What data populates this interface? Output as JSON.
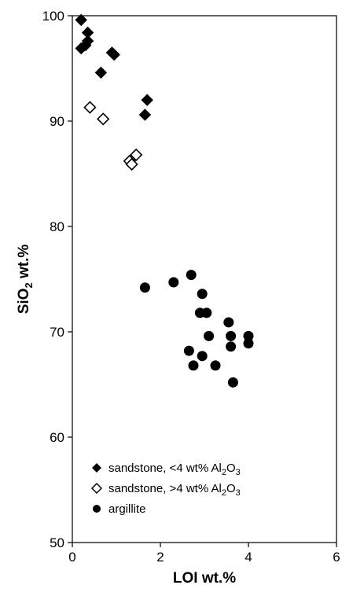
{
  "chart_data": {
    "type": "scatter",
    "xlabel": "LOI wt.%",
    "ylabel": {
      "main": "SiO",
      "sub": "2",
      "rest": " wt.%"
    },
    "xlim": [
      0,
      6
    ],
    "ylim": [
      50,
      100
    ],
    "x_ticks": [
      0,
      2,
      4,
      6
    ],
    "y_ticks": [
      50,
      60,
      70,
      80,
      90,
      100
    ],
    "grid": false,
    "legend_position": "bottom-left",
    "series": [
      {
        "name": {
          "main": "sandstone, <4 wt% Al",
          "sub1": "2",
          "mid": "O",
          "sub2": "3"
        },
        "marker": "diamond-filled",
        "points": [
          [
            0.2,
            99.6
          ],
          [
            0.35,
            98.4
          ],
          [
            0.35,
            97.6
          ],
          [
            0.3,
            97.2
          ],
          [
            0.2,
            96.9
          ],
          [
            0.9,
            96.5
          ],
          [
            0.95,
            96.3
          ],
          [
            0.65,
            94.6
          ],
          [
            1.7,
            92.0
          ],
          [
            1.65,
            90.6
          ]
        ]
      },
      {
        "name": {
          "main": "sandstone, >4 wt% Al",
          "sub1": "2",
          "mid": "O",
          "sub2": "3"
        },
        "marker": "diamond-open",
        "points": [
          [
            0.4,
            91.3
          ],
          [
            0.7,
            90.2
          ],
          [
            1.45,
            86.8
          ],
          [
            1.3,
            86.2
          ],
          [
            1.35,
            85.9
          ]
        ]
      },
      {
        "name": {
          "main": "argillite"
        },
        "marker": "circle-filled",
        "points": [
          [
            1.65,
            74.2
          ],
          [
            2.3,
            74.7
          ],
          [
            2.7,
            75.4
          ],
          [
            2.95,
            73.6
          ],
          [
            2.9,
            71.8
          ],
          [
            3.05,
            71.8
          ],
          [
            3.1,
            69.6
          ],
          [
            3.55,
            70.9
          ],
          [
            3.6,
            69.6
          ],
          [
            4.0,
            69.6
          ],
          [
            4.0,
            68.9
          ],
          [
            3.6,
            68.6
          ],
          [
            2.65,
            68.2
          ],
          [
            2.95,
            67.7
          ],
          [
            2.75,
            66.8
          ],
          [
            3.25,
            66.8
          ],
          [
            3.65,
            65.2
          ]
        ]
      }
    ]
  }
}
